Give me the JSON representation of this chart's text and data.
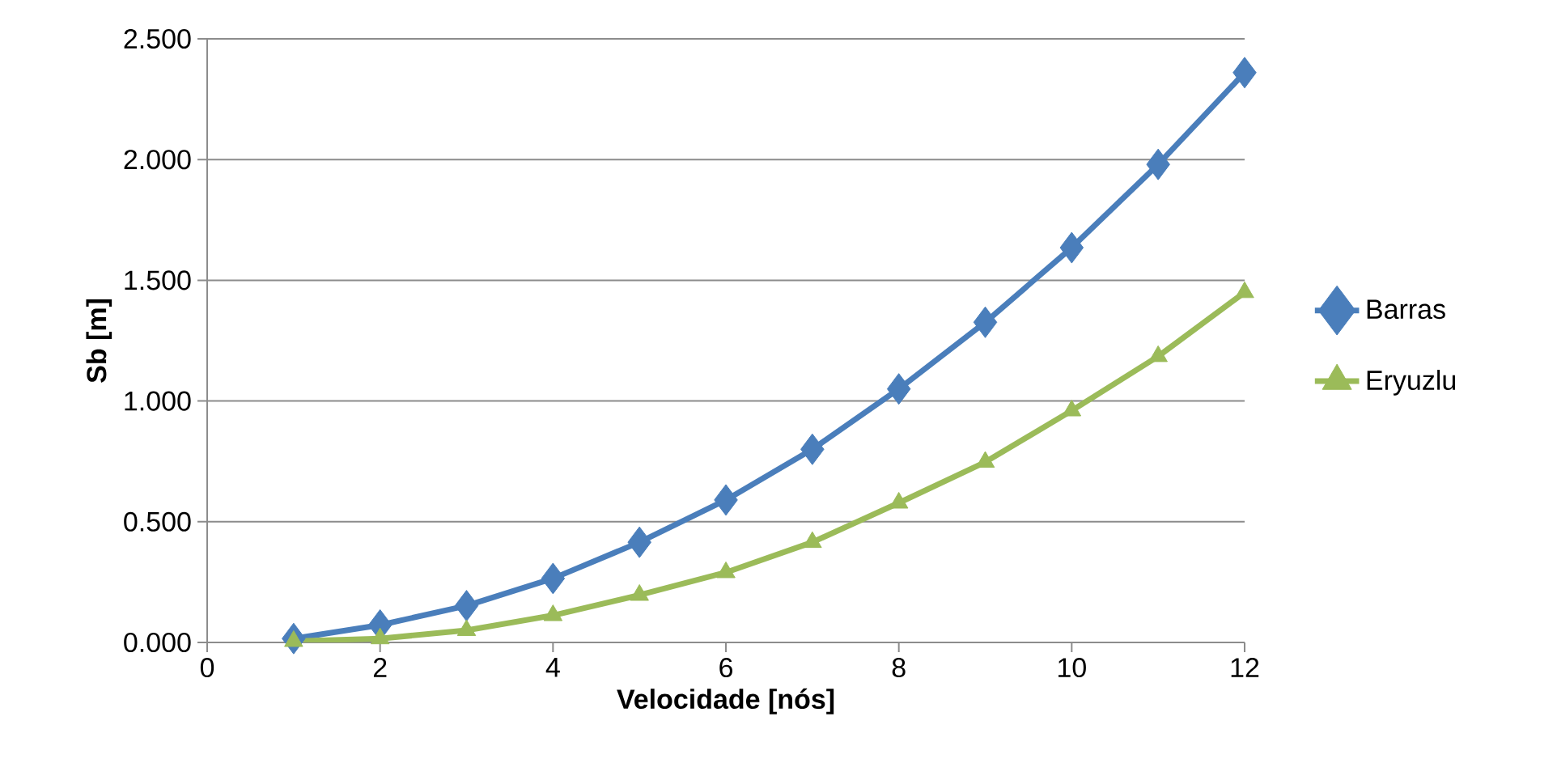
{
  "chart_data": {
    "type": "line",
    "xlabel": "Velocidade [nós]",
    "ylabel": "Sb [m]",
    "x": [
      1,
      2,
      3,
      4,
      5,
      6,
      7,
      8,
      9,
      10,
      11,
      12
    ],
    "series": [
      {
        "name": "Barras",
        "color": "#4a7ebb",
        "marker": "diamond",
        "values": [
          0.016,
          0.072,
          0.152,
          0.265,
          0.415,
          0.59,
          0.8,
          1.05,
          1.326,
          1.635,
          1.98,
          2.36
        ]
      },
      {
        "name": "Eryuzlu",
        "color": "#9bbb59",
        "marker": "triangle",
        "values": [
          0.005,
          0.016,
          0.05,
          0.112,
          0.196,
          0.29,
          0.415,
          0.578,
          0.747,
          0.96,
          1.185,
          1.45
        ]
      }
    ],
    "xlim": [
      0,
      12
    ],
    "xticks": [
      0,
      2,
      4,
      6,
      8,
      10,
      12
    ],
    "ylim": [
      0,
      2.5
    ],
    "yticks": [
      {
        "value": 0,
        "label": "0.000"
      },
      {
        "value": 0.5,
        "label": "0.500"
      },
      {
        "value": 1,
        "label": "1.000"
      },
      {
        "value": 1.5,
        "label": "1.500"
      },
      {
        "value": 2,
        "label": "2.000"
      },
      {
        "value": 2.5,
        "label": "2.500"
      }
    ],
    "grid": "y",
    "legend": "right",
    "line_style": "solid"
  }
}
